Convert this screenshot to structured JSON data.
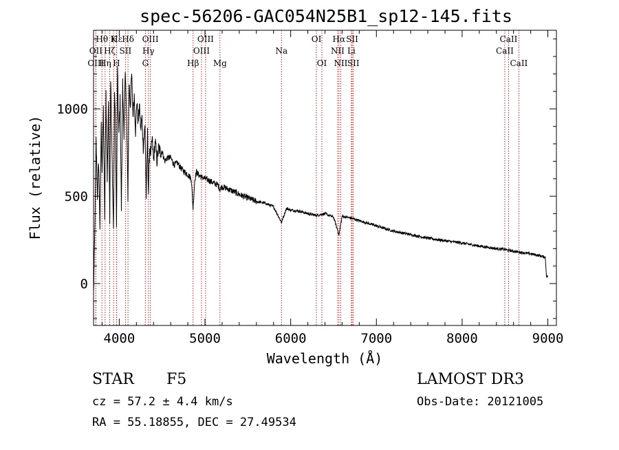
{
  "chart_data": {
    "type": "line",
    "title": "spec-56206-GAC054N25B1_sp12-145.fits",
    "xlabel": "Wavelength (Å)",
    "ylabel": "Flux (relative)",
    "xlim": [
      3700,
      9100
    ],
    "ylim": [
      -240,
      1450
    ],
    "xticks": [
      4000,
      5000,
      6000,
      7000,
      8000,
      9000
    ],
    "xtick_labels": [
      "4000",
      "5000",
      "6000",
      "7000",
      "8000",
      "9000"
    ],
    "yticks": [
      0,
      500,
      1000
    ],
    "ytick_labels": [
      "0",
      "500",
      "1000"
    ],
    "grid": false,
    "series": [
      {
        "name": "flux",
        "x": [
          3700,
          3715,
          3730,
          3745,
          3760,
          3775,
          3790,
          3800,
          3815,
          3830,
          3845,
          3860,
          3875,
          3889,
          3900,
          3915,
          3933,
          3945,
          3955,
          3968,
          3980,
          3995,
          4010,
          4025,
          4040,
          4055,
          4070,
          4085,
          4101,
          4115,
          4130,
          4145,
          4160,
          4175,
          4190,
          4205,
          4220,
          4235,
          4250,
          4265,
          4280,
          4300,
          4315,
          4330,
          4340,
          4355,
          4370,
          4385,
          4400,
          4420,
          4440,
          4460,
          4480,
          4500,
          4530,
          4560,
          4600,
          4640,
          4680,
          4720,
          4760,
          4800,
          4840,
          4861,
          4880,
          4900,
          4930,
          4960,
          5000,
          5050,
          5100,
          5150,
          5175,
          5200,
          5250,
          5300,
          5400,
          5500,
          5600,
          5700,
          5800,
          5893,
          5950,
          6000,
          6100,
          6200,
          6300,
          6400,
          6500,
          6563,
          6600,
          6700,
          6800,
          6900,
          7000,
          7200,
          7400,
          7600,
          7800,
          8000,
          8200,
          8400,
          8498,
          8542,
          8600,
          8662,
          8800,
          8900,
          8970,
          8985,
          9000
        ],
        "y": [
          -60,
          300,
          820,
          500,
          700,
          320,
          900,
          650,
          1000,
          380,
          1100,
          600,
          1050,
          380,
          1180,
          750,
          300,
          1120,
          900,
          330,
          1220,
          850,
          1050,
          430,
          1180,
          800,
          1250,
          950,
          500,
          1150,
          1020,
          1200,
          960,
          1080,
          870,
          1050,
          920,
          1020,
          880,
          950,
          780,
          900,
          500,
          860,
          520,
          780,
          740,
          830,
          700,
          820,
          700,
          780,
          750,
          760,
          700,
          720,
          720,
          680,
          690,
          660,
          640,
          625,
          600,
          430,
          590,
          640,
          620,
          610,
          600,
          590,
          575,
          565,
          540,
          555,
          545,
          535,
          510,
          490,
          470,
          460,
          440,
          350,
          430,
          420,
          415,
          400,
          390,
          400,
          380,
          280,
          385,
          375,
          360,
          345,
          330,
          300,
          280,
          260,
          245,
          232,
          215,
          200,
          195,
          190,
          185,
          180,
          170,
          160,
          150,
          40,
          40
        ]
      }
    ],
    "spectral_lines": [
      {
        "label": "Hθ",
        "wavelength": 3798,
        "row": 1
      },
      {
        "label": "OII",
        "wavelength": 3727,
        "row": 2
      },
      {
        "label": "OIII",
        "wavelength": 3727,
        "row": 3
      },
      {
        "label": "Hη",
        "wavelength": 3835,
        "row": 3
      },
      {
        "label": "Hζ",
        "wavelength": 3889,
        "row": 2
      },
      {
        "label": "K",
        "wavelength": 3934,
        "row": 1
      },
      {
        "label": "Hε",
        "wavelength": 3970,
        "row": 1
      },
      {
        "label": "H",
        "wavelength": 3968,
        "row": 3
      },
      {
        "label": "SII",
        "wavelength": 4072,
        "row": 2
      },
      {
        "label": "Hδ",
        "wavelength": 4102,
        "row": 1
      },
      {
        "label": "OIII",
        "wavelength": 4363,
        "row": 1
      },
      {
        "label": "Hγ",
        "wavelength": 4340,
        "row": 2
      },
      {
        "label": "G",
        "wavelength": 4305,
        "row": 3
      },
      {
        "label": "OIII",
        "wavelength": 5007,
        "row": 1
      },
      {
        "label": "OIII",
        "wavelength": 4959,
        "row": 2
      },
      {
        "label": "Hβ",
        "wavelength": 4861,
        "row": 3
      },
      {
        "label": "Mg",
        "wavelength": 5175,
        "row": 3
      },
      {
        "label": "Na",
        "wavelength": 5893,
        "row": 2
      },
      {
        "label": "OI",
        "wavelength": 6300,
        "row": 1
      },
      {
        "label": "OI",
        "wavelength": 6364,
        "row": 3
      },
      {
        "label": "Hα",
        "wavelength": 6563,
        "row": 1
      },
      {
        "label": "NII",
        "wavelength": 6548,
        "row": 2
      },
      {
        "label": "NII",
        "wavelength": 6584,
        "row": 3
      },
      {
        "label": "SII",
        "wavelength": 6717,
        "row": 1
      },
      {
        "label": "Li",
        "wavelength": 6708,
        "row": 2
      },
      {
        "label": "SII",
        "wavelength": 6731,
        "row": 3
      },
      {
        "label": "CaII",
        "wavelength": 8542,
        "row": 1
      },
      {
        "label": "CaII",
        "wavelength": 8498,
        "row": 2
      },
      {
        "label": "CaII",
        "wavelength": 8662,
        "row": 3
      }
    ]
  },
  "info": {
    "object_class": "STAR",
    "subclass": "F5",
    "survey": "LAMOST DR3",
    "redshift": "cz = 57.2 ± 4.4 km/s",
    "obs_date": "Obs-Date: 20121005",
    "coords": "RA =  55.18855, DEC =  27.49534"
  },
  "colors": {
    "axes": "#000000",
    "spectrum": "#000000",
    "line_markers": "#b22222",
    "background": "#ffffff"
  }
}
